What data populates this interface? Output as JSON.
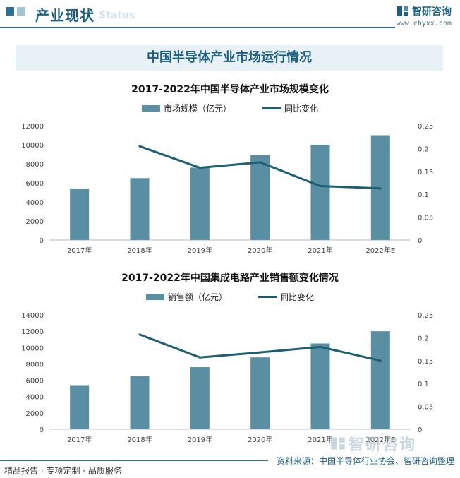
{
  "header": {
    "title": "产业现状",
    "watermark": "Status"
  },
  "brand": {
    "name": "智研咨询",
    "url": "www.chyxx.com"
  },
  "banner": "中国半导体产业市场运行情况",
  "colors": {
    "bar": "#5a8ea2",
    "line": "#1d5f73",
    "accent": "#1d5f80"
  },
  "chart_data": [
    {
      "type": "bar",
      "title": "2017-2022年中国半导体产业市场规模变化",
      "categories": [
        "2017年",
        "2018年",
        "2019年",
        "2020年",
        "2021年",
        "2022年E"
      ],
      "series": [
        {
          "name": "市场规模（亿元）",
          "type": "bar",
          "axis": "left",
          "values": [
            5400,
            6500,
            7600,
            8900,
            10000,
            11000
          ]
        },
        {
          "name": "同比变化",
          "type": "line",
          "axis": "right",
          "values": [
            null,
            0.205,
            0.158,
            0.17,
            0.118,
            0.113
          ]
        }
      ],
      "ylim_left": [
        0,
        12000
      ],
      "yticks_left": [
        "0",
        "2000",
        "4000",
        "6000",
        "8000",
        "10000",
        "12000"
      ],
      "ylim_right": [
        0,
        0.25
      ],
      "yticks_right": [
        "0",
        "0.05",
        "0.1",
        "0.15",
        "0.2",
        "0.25"
      ],
      "legend": "top-center",
      "grid": false
    },
    {
      "type": "bar",
      "title": "2017-2022年中国集成电路产业销售额变化情况",
      "categories": [
        "2017年",
        "2018年",
        "2019年",
        "2020年",
        "2021年",
        "2022年E"
      ],
      "series": [
        {
          "name": "销售额（亿元）",
          "type": "bar",
          "axis": "left",
          "values": [
            5400,
            6500,
            7600,
            8800,
            10500,
            12000
          ]
        },
        {
          "name": "同比变化",
          "type": "line",
          "axis": "right",
          "values": [
            null,
            0.207,
            0.157,
            0.168,
            0.18,
            0.15
          ]
        }
      ],
      "ylim_left": [
        0,
        14000
      ],
      "yticks_left": [
        "0",
        "2000",
        "4000",
        "6000",
        "8000",
        "10000",
        "12000",
        "14000"
      ],
      "ylim_right": [
        0,
        0.25
      ],
      "yticks_right": [
        "0",
        "0.05",
        "0.1",
        "0.15",
        "0.2",
        "0.25"
      ],
      "legend": "top-center",
      "grid": false
    }
  ],
  "footer": {
    "left": "精品报告 · 专项定制 · 品质服务",
    "right": "资料来源：中国半导体行业协会、智研咨询整理"
  }
}
